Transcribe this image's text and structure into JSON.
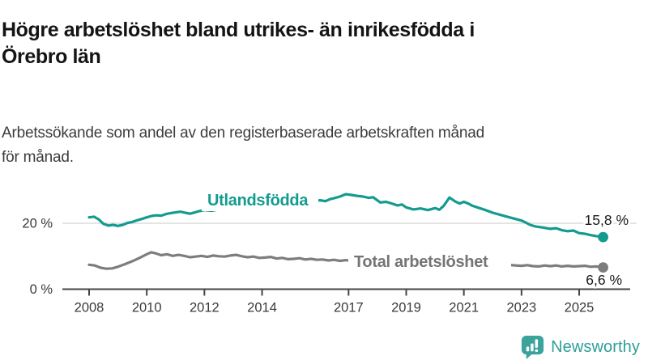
{
  "header": {
    "title_lines": [
      "Högre arbetslöshet bland utrikes- än inrikesfödda i",
      "Örebro län"
    ],
    "subtitle_lines": [
      "Arbetssökande som andel av den registerbaserade arbetskraften månad",
      "för månad."
    ]
  },
  "chart_data": {
    "type": "line",
    "title": "Högre arbetslöshet bland utrikes- än inrikesfödda i Örebro län",
    "subtitle": "Arbetssökande som andel av den registerbaserade arbetskraften månad för månad.",
    "xlabel": "",
    "ylabel": "",
    "xlim": [
      2008,
      2025.83
    ],
    "ylim": [
      0,
      32
    ],
    "x_ticks": [
      2008,
      2010,
      2012,
      2014,
      2017,
      2019,
      2021,
      2023,
      2025
    ],
    "y_ticks": [
      {
        "value": 0,
        "label": "0 %"
      },
      {
        "value": 20,
        "label": "20 %"
      }
    ],
    "grid_values": [
      20
    ],
    "grid_on": true,
    "legend_position": "inline-labels",
    "colors": {
      "grid": "#dcdcdc",
      "axis": "#444444",
      "tick_label": "#3a3a3a",
      "end_label": "#1a1a1a"
    },
    "series": [
      {
        "name": "Utlandsfödda",
        "color": "#149B8F",
        "label_color": "#149B8F",
        "end_label": "15,8 %",
        "end_value": 15.8,
        "points": [
          [
            2008.0,
            21.8
          ],
          [
            2008.17,
            22.0
          ],
          [
            2008.33,
            21.2
          ],
          [
            2008.5,
            19.8
          ],
          [
            2008.67,
            19.3
          ],
          [
            2008.83,
            19.5
          ],
          [
            2009.0,
            19.2
          ],
          [
            2009.17,
            19.5
          ],
          [
            2009.33,
            20.1
          ],
          [
            2009.5,
            20.4
          ],
          [
            2009.67,
            20.9
          ],
          [
            2009.83,
            21.3
          ],
          [
            2010.0,
            21.8
          ],
          [
            2010.17,
            22.2
          ],
          [
            2010.33,
            22.4
          ],
          [
            2010.5,
            22.3
          ],
          [
            2010.67,
            22.8
          ],
          [
            2010.83,
            23.1
          ],
          [
            2011.0,
            23.3
          ],
          [
            2011.17,
            23.5
          ],
          [
            2011.33,
            23.2
          ],
          [
            2011.5,
            22.9
          ],
          [
            2011.67,
            23.3
          ],
          [
            2011.83,
            23.7
          ],
          [
            2012.0,
            24.0
          ],
          [
            2012.25,
            23.8
          ],
          [
            2012.5,
            24.2
          ],
          [
            2012.75,
            24.4
          ],
          [
            2013.0,
            24.3
          ],
          [
            2013.25,
            24.6
          ],
          [
            2013.5,
            24.9
          ],
          [
            2013.75,
            24.7
          ],
          [
            2014.0,
            25.1
          ],
          [
            2014.25,
            25.4
          ],
          [
            2014.5,
            25.2
          ],
          [
            2014.75,
            25.6
          ],
          [
            2015.0,
            25.9
          ],
          [
            2015.25,
            26.2
          ],
          [
            2015.5,
            26.0
          ],
          [
            2015.75,
            26.4
          ],
          [
            2016.0,
            27.0
          ],
          [
            2016.2,
            26.7
          ],
          [
            2016.35,
            27.3
          ],
          [
            2016.5,
            27.6
          ],
          [
            2016.7,
            28.1
          ],
          [
            2016.9,
            28.8
          ],
          [
            2017.1,
            28.6
          ],
          [
            2017.3,
            28.3
          ],
          [
            2017.5,
            28.1
          ],
          [
            2017.7,
            27.7
          ],
          [
            2017.85,
            27.9
          ],
          [
            2018.1,
            26.3
          ],
          [
            2018.3,
            26.5
          ],
          [
            2018.5,
            26.0
          ],
          [
            2018.7,
            25.4
          ],
          [
            2018.85,
            25.7
          ],
          [
            2019.0,
            24.8
          ],
          [
            2019.25,
            24.2
          ],
          [
            2019.5,
            24.5
          ],
          [
            2019.75,
            24.0
          ],
          [
            2020.0,
            24.6
          ],
          [
            2020.15,
            24.1
          ],
          [
            2020.3,
            25.3
          ],
          [
            2020.5,
            27.8
          ],
          [
            2020.7,
            26.6
          ],
          [
            2020.85,
            26.0
          ],
          [
            2021.0,
            26.5
          ],
          [
            2021.15,
            26.0
          ],
          [
            2021.3,
            25.3
          ],
          [
            2021.5,
            24.7
          ],
          [
            2021.75,
            24.0
          ],
          [
            2022.0,
            23.2
          ],
          [
            2022.25,
            22.6
          ],
          [
            2022.5,
            22.0
          ],
          [
            2022.75,
            21.4
          ],
          [
            2023.0,
            20.8
          ],
          [
            2023.15,
            20.2
          ],
          [
            2023.3,
            19.5
          ],
          [
            2023.5,
            19.0
          ],
          [
            2023.75,
            18.7
          ],
          [
            2024.0,
            18.3
          ],
          [
            2024.2,
            18.5
          ],
          [
            2024.4,
            17.9
          ],
          [
            2024.6,
            17.6
          ],
          [
            2024.8,
            17.8
          ],
          [
            2025.0,
            17.0
          ],
          [
            2025.2,
            16.8
          ],
          [
            2025.4,
            16.4
          ],
          [
            2025.6,
            16.1
          ],
          [
            2025.83,
            15.8
          ]
        ]
      },
      {
        "name": "Total arbetslöshet",
        "color": "#7D7D7D",
        "label_color": "#757575",
        "end_label": "6,6 %",
        "end_value": 6.6,
        "points": [
          [
            2008.0,
            7.4
          ],
          [
            2008.2,
            7.2
          ],
          [
            2008.4,
            6.5
          ],
          [
            2008.6,
            6.2
          ],
          [
            2008.8,
            6.3
          ],
          [
            2009.0,
            6.8
          ],
          [
            2009.25,
            7.6
          ],
          [
            2009.5,
            8.5
          ],
          [
            2009.75,
            9.5
          ],
          [
            2010.0,
            10.6
          ],
          [
            2010.15,
            11.2
          ],
          [
            2010.3,
            10.9
          ],
          [
            2010.5,
            10.3
          ],
          [
            2010.7,
            10.6
          ],
          [
            2010.9,
            10.1
          ],
          [
            2011.1,
            10.4
          ],
          [
            2011.3,
            10.1
          ],
          [
            2011.5,
            9.7
          ],
          [
            2011.7,
            9.9
          ],
          [
            2011.9,
            10.1
          ],
          [
            2012.1,
            9.8
          ],
          [
            2012.3,
            10.2
          ],
          [
            2012.5,
            10.0
          ],
          [
            2012.7,
            9.9
          ],
          [
            2012.9,
            10.2
          ],
          [
            2013.1,
            10.4
          ],
          [
            2013.3,
            10.0
          ],
          [
            2013.5,
            9.7
          ],
          [
            2013.7,
            9.9
          ],
          [
            2013.9,
            9.5
          ],
          [
            2014.1,
            9.6
          ],
          [
            2014.3,
            9.8
          ],
          [
            2014.5,
            9.3
          ],
          [
            2014.7,
            9.5
          ],
          [
            2014.9,
            9.1
          ],
          [
            2015.1,
            9.2
          ],
          [
            2015.3,
            9.4
          ],
          [
            2015.5,
            9.0
          ],
          [
            2015.7,
            9.2
          ],
          [
            2015.9,
            8.9
          ],
          [
            2016.1,
            9.0
          ],
          [
            2016.3,
            8.7
          ],
          [
            2016.5,
            8.9
          ],
          [
            2016.7,
            8.6
          ],
          [
            2016.9,
            8.8
          ],
          [
            2017.1,
            8.6
          ],
          [
            2017.3,
            8.8
          ],
          [
            2017.5,
            8.5
          ],
          [
            2017.75,
            8.4
          ],
          [
            2018.0,
            8.2
          ],
          [
            2018.5,
            8.0
          ],
          [
            2019.0,
            7.9
          ],
          [
            2019.5,
            7.7
          ],
          [
            2020.0,
            8.0
          ],
          [
            2020.5,
            8.6
          ],
          [
            2020.75,
            8.8
          ],
          [
            2021.0,
            8.6
          ],
          [
            2021.5,
            8.2
          ],
          [
            2022.0,
            7.8
          ],
          [
            2022.5,
            7.4
          ],
          [
            2022.8,
            7.2
          ],
          [
            2023.0,
            7.1
          ],
          [
            2023.2,
            7.3
          ],
          [
            2023.4,
            7.0
          ],
          [
            2023.6,
            6.9
          ],
          [
            2023.8,
            7.2
          ],
          [
            2024.0,
            7.0
          ],
          [
            2024.2,
            7.2
          ],
          [
            2024.4,
            6.9
          ],
          [
            2024.6,
            7.1
          ],
          [
            2024.8,
            6.9
          ],
          [
            2025.0,
            7.0
          ],
          [
            2025.2,
            7.1
          ],
          [
            2025.4,
            6.8
          ],
          [
            2025.6,
            6.9
          ],
          [
            2025.83,
            6.6
          ]
        ]
      }
    ]
  },
  "footer": {
    "brand": "Newsworthy",
    "brand_color": "#2F9E97",
    "logo_color": "#3BA39C",
    "logo_icon": "bar-chart-speech-bubble-icon"
  }
}
